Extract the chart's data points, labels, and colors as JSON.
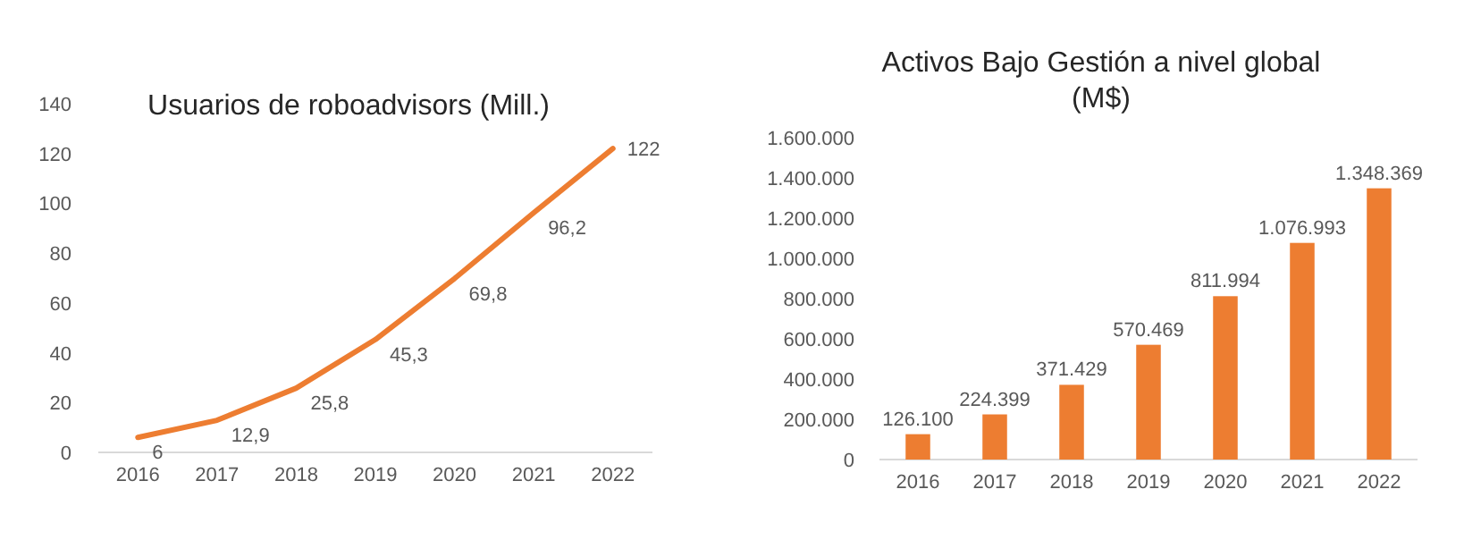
{
  "chart_data": [
    {
      "type": "line",
      "title": "Usuarios de roboadvisors (Mill.)",
      "categories": [
        "2016",
        "2017",
        "2018",
        "2019",
        "2020",
        "2021",
        "2022"
      ],
      "series": [
        {
          "color": "#ed7d31",
          "values": [
            6,
            12.9,
            25.8,
            45.3,
            69.8,
            96.2,
            122
          ],
          "value_labels": [
            "6",
            "12,9",
            "25,8",
            "45,3",
            "69,8",
            "96,2",
            "122"
          ]
        }
      ],
      "ylim": [
        0,
        140
      ],
      "yticks": [
        0,
        20,
        40,
        60,
        80,
        100,
        120,
        140
      ],
      "grid": false
    },
    {
      "type": "bar",
      "title": "Activos Bajo Gestión a nivel global (M$)",
      "categories": [
        "2016",
        "2017",
        "2018",
        "2019",
        "2020",
        "2021",
        "2022"
      ],
      "series": [
        {
          "color": "#ed7d31",
          "values": [
            126100,
            224399,
            371429,
            570469,
            811994,
            1076993,
            1348369
          ],
          "value_labels": [
            "126.100",
            "224.399",
            "371.429",
            "570.469",
            "811.994",
            "1.076.993",
            "1.348.369"
          ]
        }
      ],
      "ylim": [
        0,
        1600000
      ],
      "yticks": [
        {
          "value": 0,
          "label": "0"
        },
        {
          "value": 200000,
          "label": "200.000"
        },
        {
          "value": 400000,
          "label": "400.000"
        },
        {
          "value": 600000,
          "label": "600.000"
        },
        {
          "value": 800000,
          "label": "800.000"
        },
        {
          "value": 1000000,
          "label": "1.000.000"
        },
        {
          "value": 1200000,
          "label": "1.200.000"
        },
        {
          "value": 1400000,
          "label": "1.400.000"
        },
        {
          "value": 1600000,
          "label": "1.600.000"
        }
      ],
      "grid": false
    }
  ]
}
